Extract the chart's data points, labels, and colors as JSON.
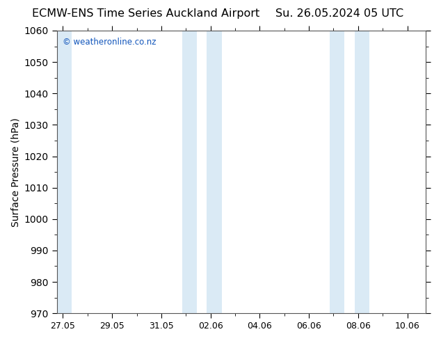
{
  "title_left": "ECMW-ENS Time Series Auckland Airport",
  "title_right": "Su. 26.05.2024 05 UTC",
  "ylabel": "Surface Pressure (hPa)",
  "ylim": [
    970,
    1060
  ],
  "ytick_interval": 10,
  "background_color": "#ffffff",
  "plot_bg_color": "#ffffff",
  "stripe_color": "#daeaf5",
  "watermark": "© weatheronline.co.nz",
  "watermark_color": "#1155bb",
  "title_fontsize": 11.5,
  "axis_label_fontsize": 10,
  "tick_label_fontsize": 9,
  "x_tick_labels": [
    "27.05",
    "29.05",
    "31.05",
    "02.06",
    "04.06",
    "06.06",
    "08.06",
    "10.06"
  ],
  "x_tick_positions": [
    0,
    2,
    4,
    6,
    8,
    10,
    12,
    14
  ],
  "x_min": -0.5,
  "x_max": 14.5,
  "stripe_bands": [
    {
      "start": -0.5,
      "end": 0.0
    },
    {
      "start": 5.0,
      "end": 5.5
    },
    {
      "start": 6.0,
      "end": 6.5
    },
    {
      "start": 11.0,
      "end": 11.5
    },
    {
      "start": 12.0,
      "end": 12.5
    }
  ]
}
